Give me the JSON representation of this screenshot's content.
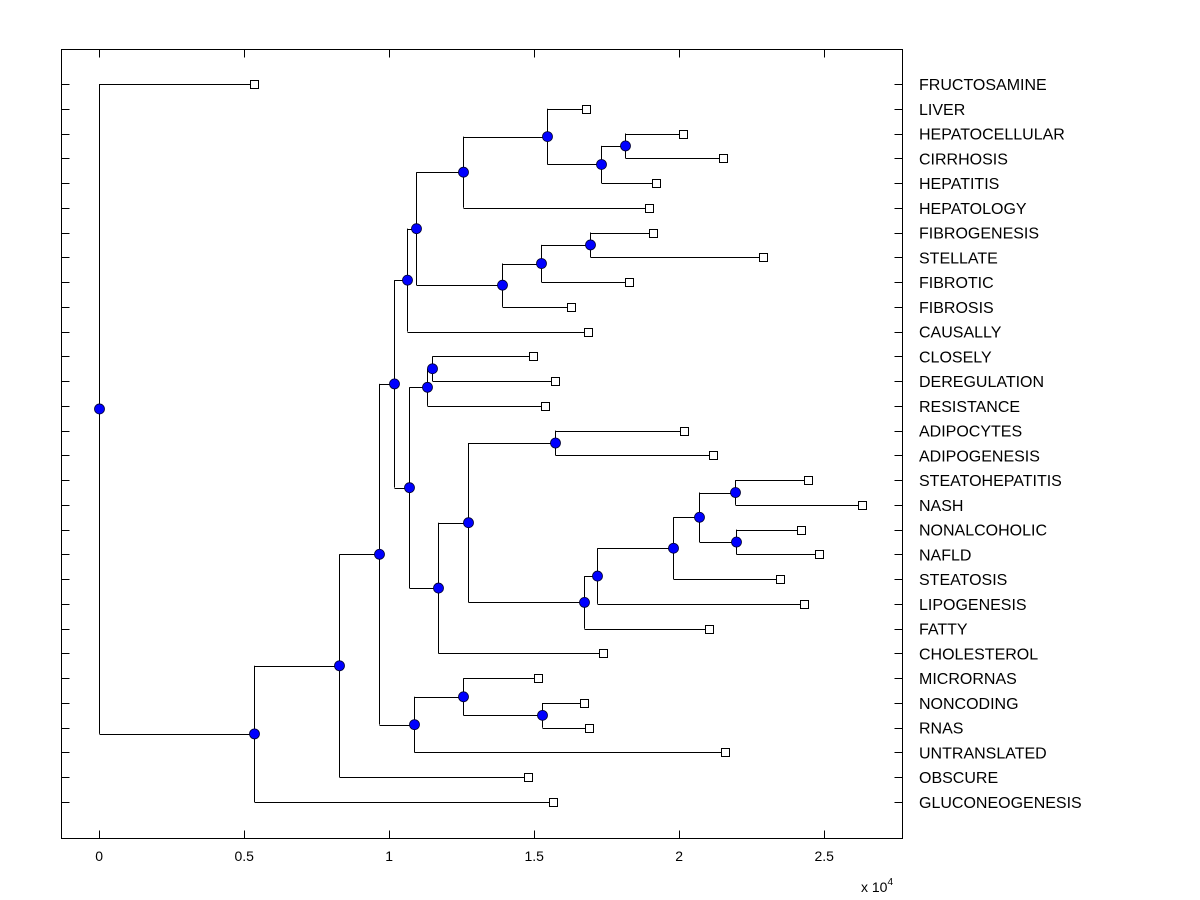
{
  "chart_data": {
    "type": "dendrogram",
    "title": "",
    "xlabel": "",
    "ylabel": "",
    "x_multiplier_label": "x 10",
    "x_multiplier_exponent": "4",
    "xlim": [
      -0.13,
      2.77
    ],
    "xticks": [
      0,
      0.5,
      1,
      1.5,
      2,
      2.5
    ],
    "xtick_labels": [
      "0",
      "0.5",
      "1",
      "1.5",
      "2",
      "2.5"
    ],
    "grid": false,
    "node_color": "#0000ff",
    "leaf_marker": "open-square",
    "leaves": [
      "FRUCTOSAMINE",
      "LIVER",
      "HEPATOCELLULAR",
      "CIRRHOSIS",
      "HEPATITIS",
      "HEPATOLOGY",
      "FIBROGENESIS",
      "STELLATE",
      "FIBROTIC",
      "FIBROSIS",
      "CAUSALLY",
      "CLOSELY",
      "DEREGULATION",
      "RESISTANCE",
      "ADIPOCYTES",
      "ADIPOGENESIS",
      "STEATOHEPATITIS",
      "NASH",
      "NONALCOHOLIC",
      "NAFLD",
      "STEATOSIS",
      "LIPOGENESIS",
      "FATTY",
      "CHOLESTEROL",
      "MICRORNAS",
      "NONCODING",
      "RNAS",
      "UNTRANSLATED",
      "OBSCURE",
      "GLUCONEOGENESIS"
    ],
    "tree": {
      "x": 0,
      "children": [
        {
          "leaf": "FRUCTOSAMINE",
          "x": 0.533
        },
        {
          "x": 0.533,
          "children": [
            {
              "x": 0.826,
              "children": [
                {
                  "x": 0.964,
                  "children": [
                    {
                      "x": 1.015,
                      "children": [
                        {
                          "x": 1.06,
                          "children": [
                            {
                              "x": 1.094,
                              "children": [
                                {
                                  "x": 1.256,
                                  "children": [
                                    {
                                      "x": 1.545,
                                      "children": [
                                        {
                                          "leaf": "LIVER",
                                          "x": 1.679
                                        },
                                        {
                                          "x": 1.731,
                                          "children": [
                                            {
                                              "x": 1.813,
                                              "children": [
                                                {
                                                  "leaf": "HEPATOCELLULAR",
                                                  "x": 2.013
                                                },
                                                {
                                                  "leaf": "CIRRHOSIS",
                                                  "x": 2.151
                                                }
                                              ]
                                            },
                                            {
                                              "leaf": "HEPATITIS",
                                              "x": 1.92
                                            }
                                          ]
                                        }
                                      ]
                                    },
                                    {
                                      "leaf": "HEPATOLOGY",
                                      "x": 1.896
                                    }
                                  ]
                                },
                                {
                                  "x": 1.39,
                                  "children": [
                                    {
                                      "x": 1.524,
                                      "children": [
                                        {
                                          "x": 1.693,
                                          "children": [
                                            {
                                              "leaf": "FIBROGENESIS",
                                              "x": 1.91
                                            },
                                            {
                                              "leaf": "STELLATE",
                                              "x": 2.288
                                            }
                                          ]
                                        },
                                        {
                                          "leaf": "FIBROTIC",
                                          "x": 1.827
                                        }
                                      ]
                                    },
                                    {
                                      "leaf": "FIBROSIS",
                                      "x": 1.628
                                    }
                                  ]
                                }
                              ]
                            },
                            {
                              "leaf": "CAUSALLY",
                              "x": 1.686
                            }
                          ]
                        },
                        {
                          "x": 1.067,
                          "children": [
                            {
                              "x": 1.129,
                              "children": [
                                {
                                  "x": 1.146,
                                  "children": [
                                    {
                                      "leaf": "CLOSELY",
                                      "x": 1.497
                                    },
                                    {
                                      "leaf": "DEREGULATION",
                                      "x": 1.573
                                    }
                                  ]
                                },
                                {
                                  "leaf": "RESISTANCE",
                                  "x": 1.538
                                }
                              ]
                            },
                            {
                              "x": 1.167,
                              "children": [
                                {
                                  "x": 1.273,
                                  "children": [
                                    {
                                      "x": 1.573,
                                      "children": [
                                        {
                                          "leaf": "ADIPOCYTES",
                                          "x": 2.016
                                        },
                                        {
                                          "leaf": "ADIPOGENESIS",
                                          "x": 2.116
                                        }
                                      ]
                                    },
                                    {
                                      "x": 1.672,
                                      "children": [
                                        {
                                          "x": 1.717,
                                          "children": [
                                            {
                                              "x": 1.979,
                                              "children": [
                                                {
                                                  "x": 2.068,
                                                  "children": [
                                                    {
                                                      "x": 2.192,
                                                      "children": [
                                                        {
                                                          "leaf": "STEATOHEPATITIS",
                                                          "x": 2.443
                                                        },
                                                        {
                                                          "leaf": "NASH",
                                                          "x": 2.629
                                                        }
                                                      ]
                                                    },
                                                    {
                                                      "x": 2.196,
                                                      "children": [
                                                        {
                                                          "leaf": "NONALCOHOLIC",
                                                          "x": 2.419
                                                        },
                                                        {
                                                          "leaf": "NAFLD",
                                                          "x": 2.481
                                                        }
                                                      ]
                                                    }
                                                  ]
                                                },
                                                {
                                                  "leaf": "STEATOSIS",
                                                  "x": 2.347
                                                }
                                              ]
                                            },
                                            {
                                              "leaf": "LIPOGENESIS",
                                              "x": 2.429
                                            }
                                          ]
                                        },
                                        {
                                          "leaf": "FATTY",
                                          "x": 2.103
                                        }
                                      ]
                                    }
                                  ]
                                },
                                {
                                  "leaf": "CHOLESTEROL",
                                  "x": 1.738
                                }
                              ]
                            }
                          ]
                        }
                      ]
                    },
                    {
                      "x": 1.087,
                      "children": [
                        {
                          "x": 1.256,
                          "children": [
                            {
                              "leaf": "MICRORNAS",
                              "x": 1.514
                            },
                            {
                              "x": 1.528,
                              "children": [
                                {
                                  "leaf": "NONCODING",
                                  "x": 1.672
                                },
                                {
                                  "leaf": "RNAS",
                                  "x": 1.69
                                }
                              ]
                            }
                          ]
                        },
                        {
                          "leaf": "UNTRANSLATED",
                          "x": 2.158
                        }
                      ]
                    }
                  ]
                },
                {
                  "leaf": "OBSCURE",
                  "x": 1.48
                }
              ]
            },
            {
              "leaf": "GLUCONEOGENESIS",
              "x": 1.566
            }
          ]
        }
      ]
    }
  }
}
